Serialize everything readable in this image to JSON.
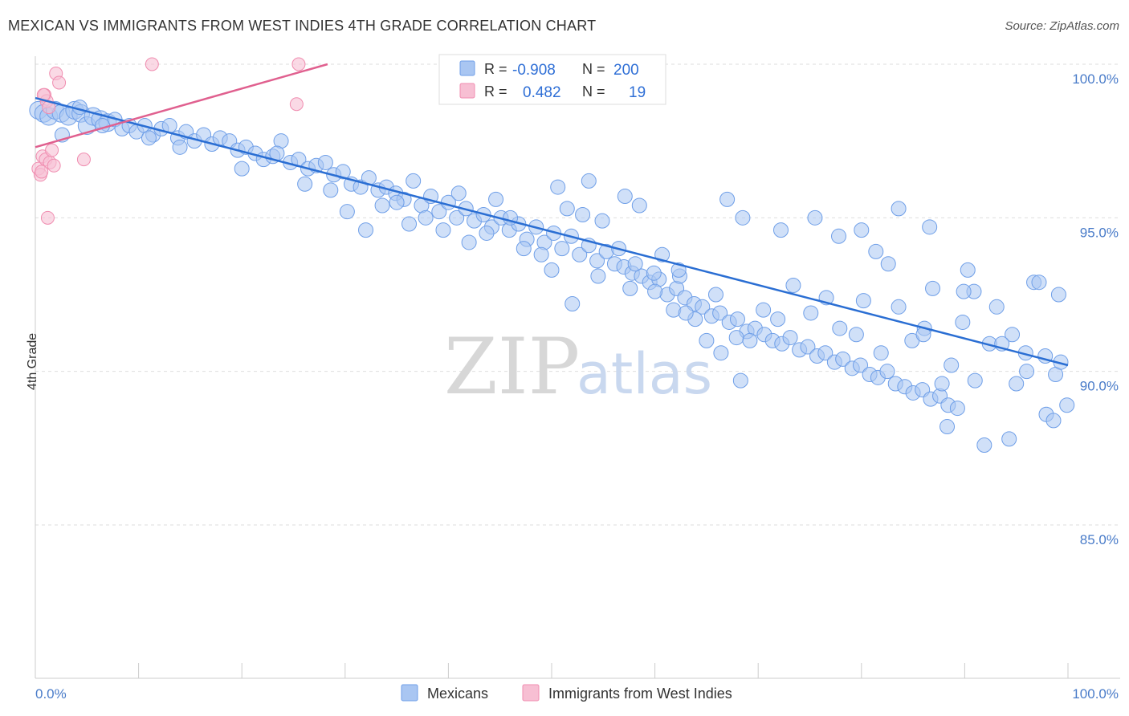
{
  "title": "MEXICAN VS IMMIGRANTS FROM WEST INDIES 4TH GRADE CORRELATION CHART",
  "source": "Source: ZipAtlas.com",
  "colors": {
    "blue": "#6f9fe8",
    "blue_fill": "#a9c6f2",
    "blue_line": "#2a6ed3",
    "pink": "#f08db0",
    "pink_fill": "#f7bfd3",
    "pink_line": "#e0608f"
  },
  "legend": {
    "r_label": "R =",
    "n_label": "N =",
    "rows": [
      {
        "r": "-0.908",
        "n": "200"
      },
      {
        "r": "0.482",
        "n": "19"
      }
    ]
  },
  "watermark": {
    "zip": "ZIP",
    "atlas": "atlas"
  },
  "chart_data": {
    "type": "scatter",
    "xlabel": "",
    "ylabel": "4th Grade",
    "x_tick_labels": [
      "0.0%",
      "100.0%"
    ],
    "y_tick_labels": [
      "100.0%",
      "95.0%",
      "90.0%",
      "85.0%"
    ],
    "y_ticks": [
      100,
      95,
      90,
      85
    ],
    "xlim": [
      0,
      100
    ],
    "ylim": [
      80,
      100.5
    ],
    "grid": "horizontal dashed",
    "legend_placement": "top-center",
    "series": [
      {
        "name": "Mexicans",
        "color": "#6f9fe8",
        "r": -0.908,
        "n": 200,
        "trend": {
          "x": [
            0,
            100
          ],
          "y": [
            98.9,
            90.2
          ]
        },
        "points": [
          [
            0.3,
            98.5
          ],
          [
            0.8,
            98.4
          ],
          [
            1.3,
            98.3
          ],
          [
            1.9,
            98.5
          ],
          [
            2.5,
            98.4
          ],
          [
            3.2,
            98.3
          ],
          [
            3.8,
            98.5
          ],
          [
            4.4,
            98.4
          ],
          [
            5.0,
            98.0
          ],
          [
            5.6,
            98.3
          ],
          [
            6.3,
            98.2
          ],
          [
            7.0,
            98.1
          ],
          [
            7.7,
            98.2
          ],
          [
            8.4,
            97.9
          ],
          [
            9.1,
            98.0
          ],
          [
            9.8,
            97.8
          ],
          [
            10.6,
            98.0
          ],
          [
            11.4,
            97.7
          ],
          [
            12.2,
            97.9
          ],
          [
            13.0,
            98.0
          ],
          [
            13.8,
            97.6
          ],
          [
            14.6,
            97.8
          ],
          [
            15.4,
            97.5
          ],
          [
            16.3,
            97.7
          ],
          [
            17.1,
            97.4
          ],
          [
            17.9,
            97.6
          ],
          [
            18.8,
            97.5
          ],
          [
            19.6,
            97.2
          ],
          [
            20.4,
            97.3
          ],
          [
            21.3,
            97.1
          ],
          [
            22.1,
            96.9
          ],
          [
            23.0,
            97.0
          ],
          [
            23.8,
            97.5
          ],
          [
            24.7,
            96.8
          ],
          [
            25.5,
            96.9
          ],
          [
            26.4,
            96.6
          ],
          [
            27.2,
            96.7
          ],
          [
            28.1,
            96.8
          ],
          [
            28.9,
            96.4
          ],
          [
            29.8,
            96.5
          ],
          [
            30.6,
            96.1
          ],
          [
            31.5,
            96.0
          ],
          [
            32.3,
            96.3
          ],
          [
            33.2,
            95.9
          ],
          [
            34.0,
            96.0
          ],
          [
            34.9,
            95.8
          ],
          [
            35.7,
            95.6
          ],
          [
            36.6,
            96.2
          ],
          [
            37.4,
            95.4
          ],
          [
            38.3,
            95.7
          ],
          [
            39.1,
            95.2
          ],
          [
            40.0,
            95.5
          ],
          [
            40.8,
            95.0
          ],
          [
            41.7,
            95.3
          ],
          [
            42.5,
            94.9
          ],
          [
            43.4,
            95.1
          ],
          [
            44.2,
            94.7
          ],
          [
            45.1,
            95.0
          ],
          [
            45.9,
            94.6
          ],
          [
            46.8,
            94.8
          ],
          [
            47.6,
            94.3
          ],
          [
            48.5,
            94.7
          ],
          [
            49.3,
            94.2
          ],
          [
            50.2,
            94.5
          ],
          [
            51.0,
            94.0
          ],
          [
            51.9,
            94.4
          ],
          [
            52.7,
            93.8
          ],
          [
            53.6,
            94.1
          ],
          [
            54.4,
            93.6
          ],
          [
            55.3,
            93.9
          ],
          [
            56.1,
            93.5
          ],
          [
            57.0,
            93.4
          ],
          [
            57.8,
            93.2
          ],
          [
            58.7,
            93.1
          ],
          [
            59.5,
            92.9
          ],
          [
            60.4,
            93.0
          ],
          [
            61.2,
            92.5
          ],
          [
            62.1,
            92.7
          ],
          [
            62.9,
            92.4
          ],
          [
            63.8,
            92.2
          ],
          [
            64.6,
            92.1
          ],
          [
            65.5,
            91.8
          ],
          [
            66.3,
            91.9
          ],
          [
            67.2,
            91.6
          ],
          [
            68.0,
            91.7
          ],
          [
            68.9,
            91.3
          ],
          [
            69.7,
            91.4
          ],
          [
            70.6,
            91.2
          ],
          [
            71.4,
            91.0
          ],
          [
            72.3,
            90.9
          ],
          [
            73.1,
            91.1
          ],
          [
            74.0,
            90.7
          ],
          [
            74.8,
            90.8
          ],
          [
            75.7,
            90.5
          ],
          [
            76.5,
            90.6
          ],
          [
            77.4,
            90.3
          ],
          [
            78.2,
            90.4
          ],
          [
            79.1,
            90.1
          ],
          [
            79.9,
            90.2
          ],
          [
            80.8,
            89.9
          ],
          [
            81.6,
            89.8
          ],
          [
            82.5,
            90.0
          ],
          [
            83.3,
            89.6
          ],
          [
            84.2,
            89.5
          ],
          [
            85.0,
            89.3
          ],
          [
            85.9,
            89.4
          ],
          [
            86.7,
            89.1
          ],
          [
            87.6,
            89.2
          ],
          [
            88.4,
            88.9
          ],
          [
            89.3,
            88.8
          ],
          [
            2.6,
            97.7
          ],
          [
            4.3,
            98.6
          ],
          [
            6.5,
            98.0
          ],
          [
            11.0,
            97.6
          ],
          [
            14.0,
            97.3
          ],
          [
            20.0,
            96.6
          ],
          [
            23.4,
            97.1
          ],
          [
            26.1,
            96.1
          ],
          [
            28.6,
            95.9
          ],
          [
            30.2,
            95.2
          ],
          [
            32.0,
            94.6
          ],
          [
            33.6,
            95.4
          ],
          [
            35.0,
            95.5
          ],
          [
            36.2,
            94.8
          ],
          [
            37.8,
            95.0
          ],
          [
            39.5,
            94.6
          ],
          [
            41.0,
            95.8
          ],
          [
            42.0,
            94.2
          ],
          [
            43.7,
            94.5
          ],
          [
            44.6,
            95.6
          ],
          [
            46.0,
            95.0
          ],
          [
            47.3,
            94.0
          ],
          [
            49.0,
            93.8
          ],
          [
            50.0,
            93.3
          ],
          [
            51.5,
            95.3
          ],
          [
            53.0,
            95.1
          ],
          [
            54.9,
            94.9
          ],
          [
            56.5,
            94.0
          ],
          [
            58.1,
            93.5
          ],
          [
            59.9,
            93.2
          ],
          [
            61.8,
            92.0
          ],
          [
            62.4,
            93.1
          ],
          [
            63.9,
            91.7
          ],
          [
            65.9,
            92.5
          ],
          [
            67.9,
            91.1
          ],
          [
            69.2,
            91.0
          ],
          [
            70.5,
            92.0
          ],
          [
            71.9,
            91.7
          ],
          [
            73.4,
            92.8
          ],
          [
            75.1,
            91.9
          ],
          [
            76.6,
            92.4
          ],
          [
            77.9,
            91.4
          ],
          [
            79.5,
            91.2
          ],
          [
            80.2,
            92.3
          ],
          [
            81.9,
            90.6
          ],
          [
            83.6,
            92.1
          ],
          [
            84.9,
            91.0
          ],
          [
            86.1,
            91.4
          ],
          [
            86.9,
            92.7
          ],
          [
            88.7,
            90.2
          ],
          [
            89.8,
            91.6
          ],
          [
            90.9,
            92.6
          ],
          [
            92.4,
            90.9
          ],
          [
            93.1,
            92.1
          ],
          [
            94.6,
            91.2
          ],
          [
            95.9,
            90.6
          ],
          [
            96.7,
            92.9
          ],
          [
            97.8,
            90.5
          ],
          [
            98.8,
            89.9
          ],
          [
            99.1,
            92.5
          ],
          [
            50.6,
            96.0
          ],
          [
            53.6,
            96.2
          ],
          [
            57.1,
            95.7
          ],
          [
            58.5,
            95.4
          ],
          [
            60.7,
            93.8
          ],
          [
            62.3,
            93.3
          ],
          [
            67.0,
            95.6
          ],
          [
            68.5,
            95.0
          ],
          [
            72.2,
            94.6
          ],
          [
            75.5,
            95.0
          ],
          [
            77.8,
            94.4
          ],
          [
            80.0,
            94.6
          ],
          [
            81.4,
            93.9
          ],
          [
            82.6,
            93.5
          ],
          [
            83.6,
            95.3
          ],
          [
            86.0,
            91.2
          ],
          [
            86.6,
            94.7
          ],
          [
            87.8,
            89.6
          ],
          [
            88.3,
            88.2
          ],
          [
            89.9,
            92.6
          ],
          [
            90.3,
            93.3
          ],
          [
            91.0,
            89.7
          ],
          [
            91.9,
            87.6
          ],
          [
            93.6,
            90.9
          ],
          [
            94.3,
            87.8
          ],
          [
            95.0,
            89.6
          ],
          [
            96.0,
            90.0
          ],
          [
            97.2,
            92.9
          ],
          [
            97.9,
            88.6
          ],
          [
            98.6,
            88.4
          ],
          [
            99.3,
            90.3
          ],
          [
            99.9,
            88.9
          ],
          [
            52.0,
            92.2
          ],
          [
            54.5,
            93.1
          ],
          [
            57.6,
            92.7
          ],
          [
            60.0,
            92.6
          ],
          [
            63.0,
            91.9
          ],
          [
            65.0,
            91.0
          ],
          [
            66.4,
            90.6
          ],
          [
            68.3,
            89.7
          ]
        ]
      },
      {
        "name": "Immigrants from West Indies",
        "color": "#f08db0",
        "r": 0.482,
        "n": 19,
        "trend": {
          "x": [
            0,
            28.3
          ],
          "y": [
            97.3,
            100.0
          ]
        },
        "points": [
          [
            0.3,
            96.6
          ],
          [
            0.5,
            96.4
          ],
          [
            0.7,
            97.0
          ],
          [
            0.9,
            99.0
          ],
          [
            1.0,
            96.9
          ],
          [
            1.1,
            98.8
          ],
          [
            1.2,
            95.0
          ],
          [
            1.4,
            96.8
          ],
          [
            1.6,
            97.2
          ],
          [
            1.8,
            96.7
          ],
          [
            2.0,
            99.7
          ],
          [
            2.3,
            99.4
          ],
          [
            4.7,
            96.9
          ],
          [
            11.3,
            100.0
          ],
          [
            25.5,
            100.0
          ],
          [
            25.3,
            98.7
          ],
          [
            0.6,
            96.5
          ],
          [
            1.3,
            98.6
          ],
          [
            0.8,
            99.0
          ]
        ]
      }
    ]
  }
}
